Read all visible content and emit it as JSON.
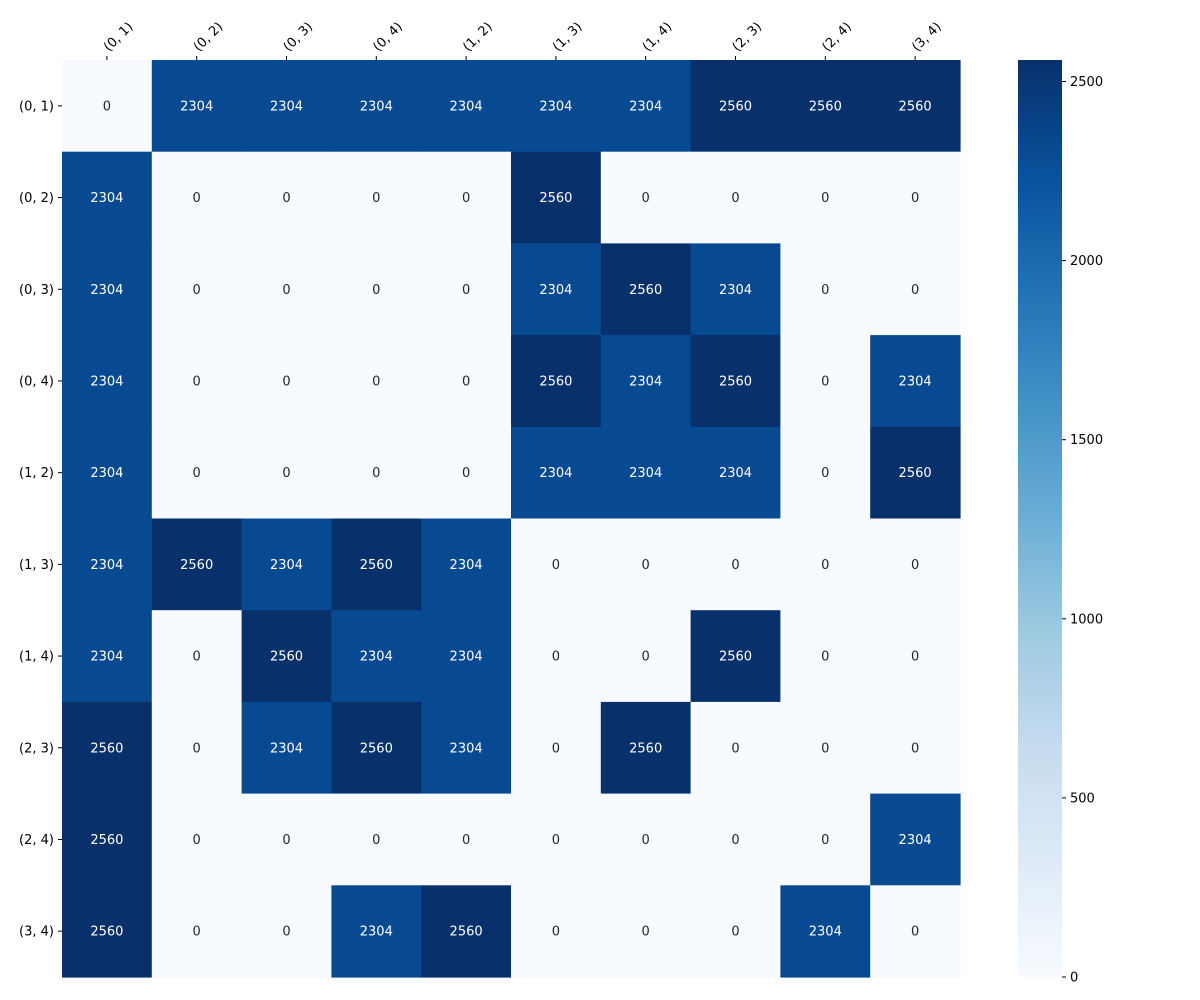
{
  "chart_data": {
    "type": "heatmap",
    "title": "",
    "xlabel": "",
    "ylabel": "",
    "x_categories": [
      "(0, 1)",
      "(0, 2)",
      "(0, 3)",
      "(0, 4)",
      "(1, 2)",
      "(1, 3)",
      "(1, 4)",
      "(2, 3)",
      "(2, 4)",
      "(3, 4)"
    ],
    "y_categories": [
      "(0, 1)",
      "(0, 2)",
      "(0, 3)",
      "(0, 4)",
      "(1, 2)",
      "(1, 3)",
      "(1, 4)",
      "(2, 3)",
      "(2, 4)",
      "(3, 4)"
    ],
    "values": [
      [
        0,
        2304,
        2304,
        2304,
        2304,
        2304,
        2304,
        2560,
        2560,
        2560
      ],
      [
        2304,
        0,
        0,
        0,
        0,
        2560,
        0,
        0,
        0,
        0
      ],
      [
        2304,
        0,
        0,
        0,
        0,
        2304,
        2560,
        2304,
        0,
        0
      ],
      [
        2304,
        0,
        0,
        0,
        0,
        2560,
        2304,
        2560,
        0,
        2304
      ],
      [
        2304,
        0,
        0,
        0,
        0,
        2304,
        2304,
        2304,
        0,
        2560
      ],
      [
        2304,
        2560,
        2304,
        2560,
        2304,
        0,
        0,
        0,
        0,
        0
      ],
      [
        2304,
        0,
        2560,
        2304,
        2304,
        0,
        0,
        2560,
        0,
        0
      ],
      [
        2560,
        0,
        2304,
        2560,
        2304,
        0,
        2560,
        0,
        0,
        0
      ],
      [
        2560,
        0,
        0,
        0,
        0,
        0,
        0,
        0,
        0,
        2304
      ],
      [
        2560,
        0,
        0,
        2304,
        2560,
        0,
        0,
        0,
        2304,
        0
      ]
    ],
    "x_axis_position": "top",
    "annotations": true,
    "colormap": "Blues",
    "colorbar": {
      "min": 0,
      "max": 2560,
      "ticks": [
        0,
        500,
        1000,
        1500,
        2000,
        2500
      ]
    },
    "colors": {
      "low": "#f7fbff",
      "high": "#08306b",
      "text_dark": "#262626",
      "text_light": "#ffffff"
    }
  }
}
